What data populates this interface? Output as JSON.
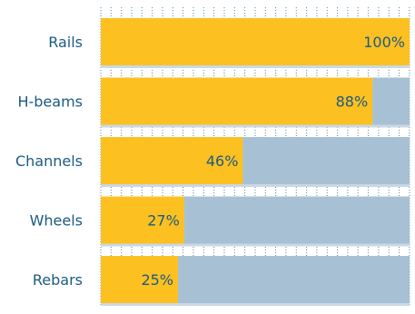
{
  "chart_data": {
    "type": "bar",
    "orientation": "horizontal",
    "stacked": true,
    "categories": [
      "Rails",
      "H-beams",
      "Channels",
      "Wheels",
      "Rebars"
    ],
    "series": [
      {
        "values": [
          100,
          88,
          46,
          27,
          25
        ]
      },
      {
        "values": [
          0,
          12,
          54,
          73,
          75
        ]
      }
    ],
    "value_labels": [
      "100%",
      "88%",
      "46%",
      "27%",
      "25%"
    ],
    "xlim": [
      0,
      100
    ],
    "grid": true,
    "legend": "none",
    "colors": {
      "primary": "#fcc021",
      "remainder": "#a7c0d4",
      "text": "#1b5a83",
      "grid": "#5b86aa"
    }
  }
}
